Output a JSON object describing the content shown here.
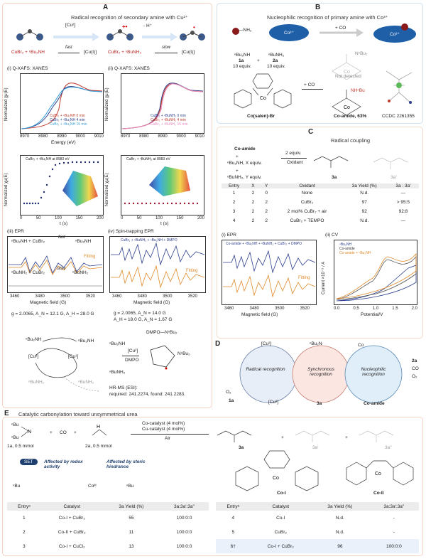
{
  "panelA": {
    "letter": "A",
    "title": "Radical recognition of secondary amine with Cu²⁺",
    "cu_step": "[Cu²]",
    "h_step": "- H⁺",
    "rxn1_left": "CuBr₂ + ⁿBu₂NH",
    "rxn1_arrow": "fast",
    "rxn1_right": "[Cu(I)]",
    "rxn2_left": "CuBr₂ + ⁿBuNH₂",
    "rxn2_arrow": "slow",
    "rxn2_right": "[Cu(I)]",
    "xafs_i_title": "(i) Q-XAFS: XANES",
    "xafs_ii_title": "(ii) Q-XAFS: XANES",
    "xafs_ylabel": "Normalized χμ(E)",
    "xafs_xlabel": "Energy (eV)",
    "xafs_i_legend": [
      "CuBr₂ + ⁿBu₂NH 0 min",
      "CuBr₂ + ⁿBu₂NH 4 min",
      "CuBr₂ + ⁿBu₂NH 15 min"
    ],
    "xafs_ii_legend": [
      "CuBr₂ + ⁿBuNH₂ 0 min",
      "CuBr₂ + ⁿBuNH₂ 4 min",
      "CuBr₂ + ⁿBuNH₂ 15 min"
    ],
    "kinetic_i_legend": "CuBr₂ + ⁿBu₂NH at 8983 eV",
    "kinetic_ii_legend": "CuBr₂ + ⁿBuNH₂ at 8983 eV",
    "kinetic_ylabel": "Normalized χμ(E)",
    "kinetic_xlabel": "t (s)",
    "epr_iii_title": "(iii) EPR",
    "epr_iii_top": "ⁿBu₂NH + CuBr₂",
    "epr_iii_top_arrow": "fast",
    "epr_iii_top_prod": "ⁿBu₂NH",
    "epr_iii_bot": "ⁿBuNH₂ + CuBr₂",
    "epr_iii_bot_arrow": "slow",
    "epr_iii_bot_prod": "ⁿBuNH₂",
    "epr_fitting": "Fitting",
    "epr_xlabel": "Magnetic field (G)",
    "epr_iv_title": "(iv) Spin-trapping EPR",
    "epr_iv_legend": "CuBr₂ + ⁿBuNH₂ + ⁿBu₂NH + DMPO",
    "params_left": "g = 2.0065, A_N = 12.1 G, A_H = 28.0 G",
    "params_right_1": "g = 2.0065, A_N = 14.0 G",
    "params_right_2": "A_H = 18.0 G, A_N = 1.67 G",
    "cycle_top_amine": "ⁿBu₂NH",
    "cycle_right": "ⁿBu₂NH",
    "cycle_cu2": "[Cu²]",
    "cycle_cu1": "[Cu¹]",
    "cycle_bunh2_left": "ⁿBuNH₂",
    "cycle_bunh2_right": "ⁿBuNH₂",
    "dmpo_top": "DMPO—NⁿBu₂",
    "dmpo_amine": "ⁿBu₂NH",
    "dmpo_cu": "[Cu²]",
    "dmpo_label": "DMPO",
    "dmpo_bunh2": "ⁿBuNH₂",
    "dmpo_product_N": "NⁿBu₂",
    "hrms_1": "HR-MS (ESI):",
    "hrms_2": "required: 241.2274, found: 241.2283."
  },
  "panelB": {
    "letter": "B",
    "title": "Nucleophilic recognition of primary amine with Co³⁺",
    "nh2": "—NH₂",
    "co": "Co³⁺",
    "plus_co": "+ CO",
    "co_right": "Co³⁺",
    "reagent1": "ⁿBu₂NH",
    "reagent1_id": "1a",
    "reagent1_eq": "10 equiv.",
    "plus": "+",
    "reagent2": "ⁿBuNH₂",
    "reagent2_id": "2a",
    "reagent2_eq": "10 equiv.",
    "complex_name": "Co(salen)-Br",
    "plus_co2": "+ CO",
    "not_detected": "Not detected",
    "nbu_label": "NⁿBu₂",
    "product_nhbu": "NHⁿBu",
    "co_amide": "Co-amide, 63%",
    "ccdc": "CCDC 2261355"
  },
  "panelC": {
    "letter": "C",
    "title": "Radical coupling",
    "start": "Co-amide",
    "plus1": "+",
    "amine1": "ⁿBu₂NH, X equiv.",
    "plus2": "+",
    "amine2": "ⁿBuNH₂, Y equiv.",
    "arrow_top": "2 equiv.",
    "arrow_bottom": "Oxidant",
    "prod_3a": "3a",
    "prod_3a_prime": "3a'",
    "table_headers": [
      "Entry",
      "X",
      "Y",
      "Oxidant",
      "3a Yield (%)",
      "3a : 3a'"
    ],
    "table_rows": [
      [
        "1",
        "2",
        "0",
        "None",
        "N.d.",
        "—"
      ],
      [
        "2",
        "2",
        "2",
        "CuBr₂",
        "97",
        "> 95:5"
      ],
      [
        "3",
        "2",
        "2",
        "2 mol% CuBr₂ + air",
        "92",
        "92:8"
      ],
      [
        "4",
        "2",
        "2",
        "CuBr₂ + TEMPO",
        "N.d.",
        "—"
      ]
    ],
    "epr_title": "(i) EPR",
    "epr_legend": "Co-amide + ⁿBu₂NH + ⁿBuNH₂ + CuBr₂ + DMPO",
    "epr_fitting": "Fitting",
    "epr_xlabel": "Magnetic field (G)",
    "cv_title": "(ii) CV",
    "cv_legend": [
      "ⁿBu₂NH",
      "Co-amide",
      "Co-amide + ⁿBu₂NH"
    ],
    "cv_ylabel": "Current ×10⁻⁵ / A",
    "cv_xlabel": "Potential/V"
  },
  "panelD": {
    "letter": "D",
    "cu2": "[Cu²]",
    "amine_radical": "ⁿBu₂N·",
    "cu1": "[Cu¹]",
    "left_text": "Radical recognition",
    "mid_text": "Synchronous recognition",
    "right_text": "Nucleophilic recognition",
    "o2": "O₂",
    "id_1a": "1a",
    "id_3a": "3a",
    "co_amide": "Co-amide",
    "right_2a": "2a",
    "right_co": "CO",
    "right_o2": "O₂",
    "co_center": "Co"
  },
  "panelE": {
    "letter": "E",
    "title": "Catalytic carbonylation toward unsymmetrical urea",
    "sm1_nbu1": "ⁿBu",
    "sm1_nbu2": "ⁿBu",
    "sm1_label": "1a, 0.5 mmol",
    "plus1": "+",
    "co": "CO",
    "plus2": "+",
    "sm2_label": "2a, 0.5 mmol",
    "conditions": [
      "Co-catalyst (4 mol%)",
      "Cu-catalyst (4 mol%)",
      "Air"
    ],
    "prod_3a": "3a",
    "prod_3a_prime": "3a'",
    "prod_3a_dbl": "3a''",
    "set_label": "SET",
    "affected_redox": "Affected by redox activity",
    "affected_steric": "Affected by steric hindrance",
    "co_iii": "Coᴵᴵᴵ",
    "nbu": "ⁿBu",
    "coi_label": "Co-I",
    "coii_label": "Co-II",
    "table_headers": [
      "Entryᵃ",
      "Catalyst",
      "3a Yield (%)",
      "3a:3a':3a''"
    ],
    "table_left": [
      [
        "1",
        "Co-I + CuBr₂",
        "55",
        "100:0:0"
      ],
      [
        "2",
        "Co-II + CuBr₂",
        "11",
        "100:0:0"
      ],
      [
        "3",
        "Co-I + CuCl₂",
        "13",
        "100:0:0"
      ]
    ],
    "table_right": [
      [
        "4",
        "Co-I",
        "N.d.",
        "-"
      ],
      [
        "5",
        "CuBr₂",
        "N.d.",
        "-"
      ],
      [
        "6†",
        "Co-I + CuBr₂",
        "96",
        "100:0:0"
      ]
    ]
  },
  "axes": {
    "xafs_ticks": [
      "8970",
      "8980",
      "8990",
      "9000",
      "9010"
    ],
    "kin_ticks": [
      "0",
      "50",
      "100",
      "150",
      "200"
    ],
    "epr_ticks": [
      "3460",
      "3480",
      "3500",
      "3520"
    ],
    "cv_xticks": [
      "0.0",
      "0.5",
      "1.0",
      "1.5",
      "2.0"
    ],
    "cv_yticks": [
      "0",
      "1",
      "2",
      "3",
      "4"
    ],
    "y_ticks_xafs": [
      "0.0",
      "0.5",
      "1.0",
      "1.5"
    ]
  }
}
